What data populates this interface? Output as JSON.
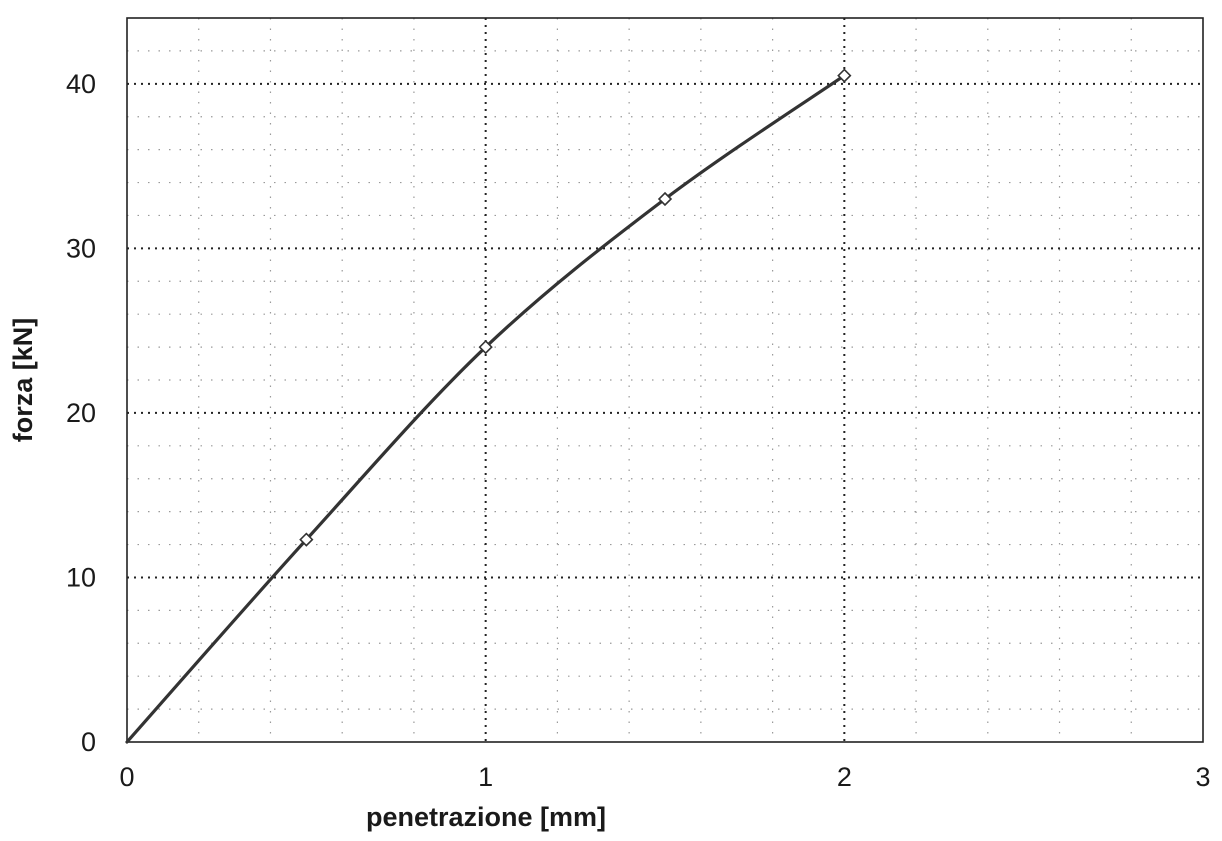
{
  "chart_data": {
    "type": "line",
    "title": "",
    "xlabel": "penetrazione [mm]",
    "ylabel": "forza [kN]",
    "xlim": [
      0,
      3
    ],
    "ylim": [
      0,
      44
    ],
    "x_ticks": [
      0,
      1,
      2,
      3
    ],
    "y_ticks": [
      0,
      10,
      20,
      30,
      40
    ],
    "x_tick_labels": [
      "0",
      "1",
      "2",
      "3"
    ],
    "y_tick_labels": [
      "0",
      "10",
      "20",
      "30",
      "40"
    ],
    "major_grid": true,
    "minor_grid": true,
    "grid_style": "dotted",
    "legend": "none",
    "series": [
      {
        "x": [
          0,
          0.5,
          1.0,
          1.5,
          2.0
        ],
        "y": [
          0,
          12.3,
          24.0,
          33.0,
          40.5
        ],
        "marker": "diamond",
        "color": "#333333"
      }
    ]
  }
}
